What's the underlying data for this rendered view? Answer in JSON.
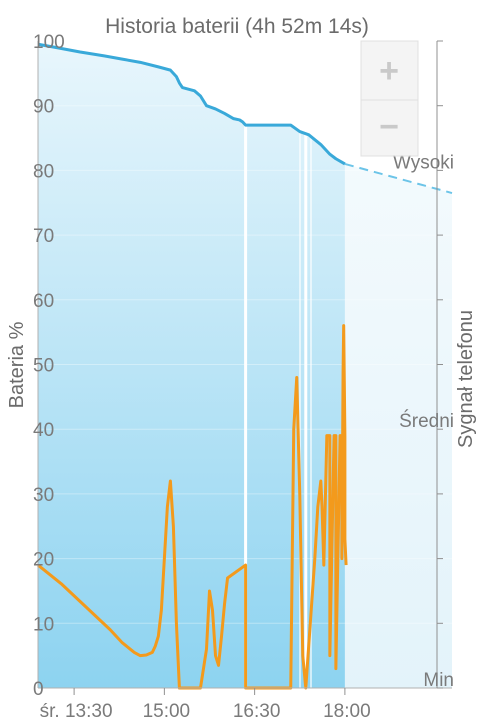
{
  "chart_data": {
    "type": "line",
    "title": "Historia baterii (4h 52m 14s)",
    "ylabel": "Bateria %",
    "y2label": "Sygnał telefonu",
    "ylim": [
      0,
      100
    ],
    "yticks": [
      "0",
      "10",
      "20",
      "30",
      "40",
      "50",
      "60",
      "70",
      "80",
      "90",
      "100"
    ],
    "xlim": [
      12.9,
      19.78
    ],
    "xticks": [
      {
        "value": 13.5,
        "label": "śr. 13:30"
      },
      {
        "value": 15.0,
        "label": "15:00"
      },
      {
        "value": 16.5,
        "label": "16:30"
      },
      {
        "value": 18.0,
        "label": "18:00"
      }
    ],
    "signal_ticks": [
      {
        "value": 0,
        "label": "Min"
      },
      {
        "value": 40,
        "label": "Średni"
      },
      {
        "value": 80,
        "label": "Wysoki"
      }
    ],
    "series": [
      {
        "kind": "battery",
        "color": "#39a9d9",
        "x": [
          12.9,
          13.2,
          13.6,
          14.0,
          14.3,
          14.6,
          14.9,
          15.1,
          15.2,
          15.25,
          15.3,
          15.5,
          15.6,
          15.7,
          15.85,
          16.0,
          16.15,
          16.25,
          16.3,
          16.35,
          17.1,
          17.25,
          17.4,
          17.6,
          17.75,
          17.85,
          18.0
        ],
        "values": [
          99.5,
          99,
          98.3,
          97.7,
          97.2,
          96.7,
          96,
          95.5,
          94.5,
          93.5,
          92.8,
          92.3,
          91.5,
          90,
          89.5,
          88.8,
          88,
          87.8,
          87.5,
          87,
          87,
          86,
          85.5,
          84,
          82.5,
          81.8,
          81
        ]
      },
      {
        "kind": "battery-projection",
        "color": "#6cc4e8",
        "x": [
          18.0,
          19.78
        ],
        "values": [
          81,
          76.5
        ]
      },
      {
        "kind": "signal",
        "color": "#f39a1c",
        "x": [
          12.9,
          13.3,
          13.7,
          14.1,
          14.3,
          14.5,
          14.6,
          14.7,
          14.8,
          14.85,
          14.9,
          14.95,
          15.0,
          15.05,
          15.1,
          15.15,
          15.2,
          15.25,
          15.3,
          15.6,
          15.7,
          15.75,
          15.8,
          15.85,
          15.9,
          15.95,
          16.0,
          16.05,
          16.35,
          16.35,
          17.1,
          17.15,
          17.2,
          17.25,
          17.3,
          17.35,
          17.5,
          17.55,
          17.6,
          17.62,
          17.65,
          17.7,
          17.75,
          17.75,
          17.82,
          17.85,
          17.85,
          17.92,
          17.95,
          17.95,
          17.97,
          17.98,
          18.0,
          18.0,
          18.02
        ],
        "values": [
          19,
          16,
          12.5,
          9,
          7,
          5.5,
          5,
          5.1,
          5.5,
          6.5,
          8,
          12,
          20,
          28,
          32,
          25,
          10,
          0,
          0,
          0,
          6,
          15,
          12,
          5,
          3.5,
          8,
          13,
          17,
          19,
          0,
          0,
          40,
          48,
          30,
          5,
          0,
          20,
          28,
          32,
          28,
          19,
          39,
          39,
          5,
          39,
          39,
          3,
          39,
          39,
          20,
          49,
          56,
          39,
          23,
          19
        ]
      }
    ],
    "separators": [
      16.35,
      17.35
    ],
    "zoom": {
      "plus": "+",
      "minus": "−"
    }
  }
}
